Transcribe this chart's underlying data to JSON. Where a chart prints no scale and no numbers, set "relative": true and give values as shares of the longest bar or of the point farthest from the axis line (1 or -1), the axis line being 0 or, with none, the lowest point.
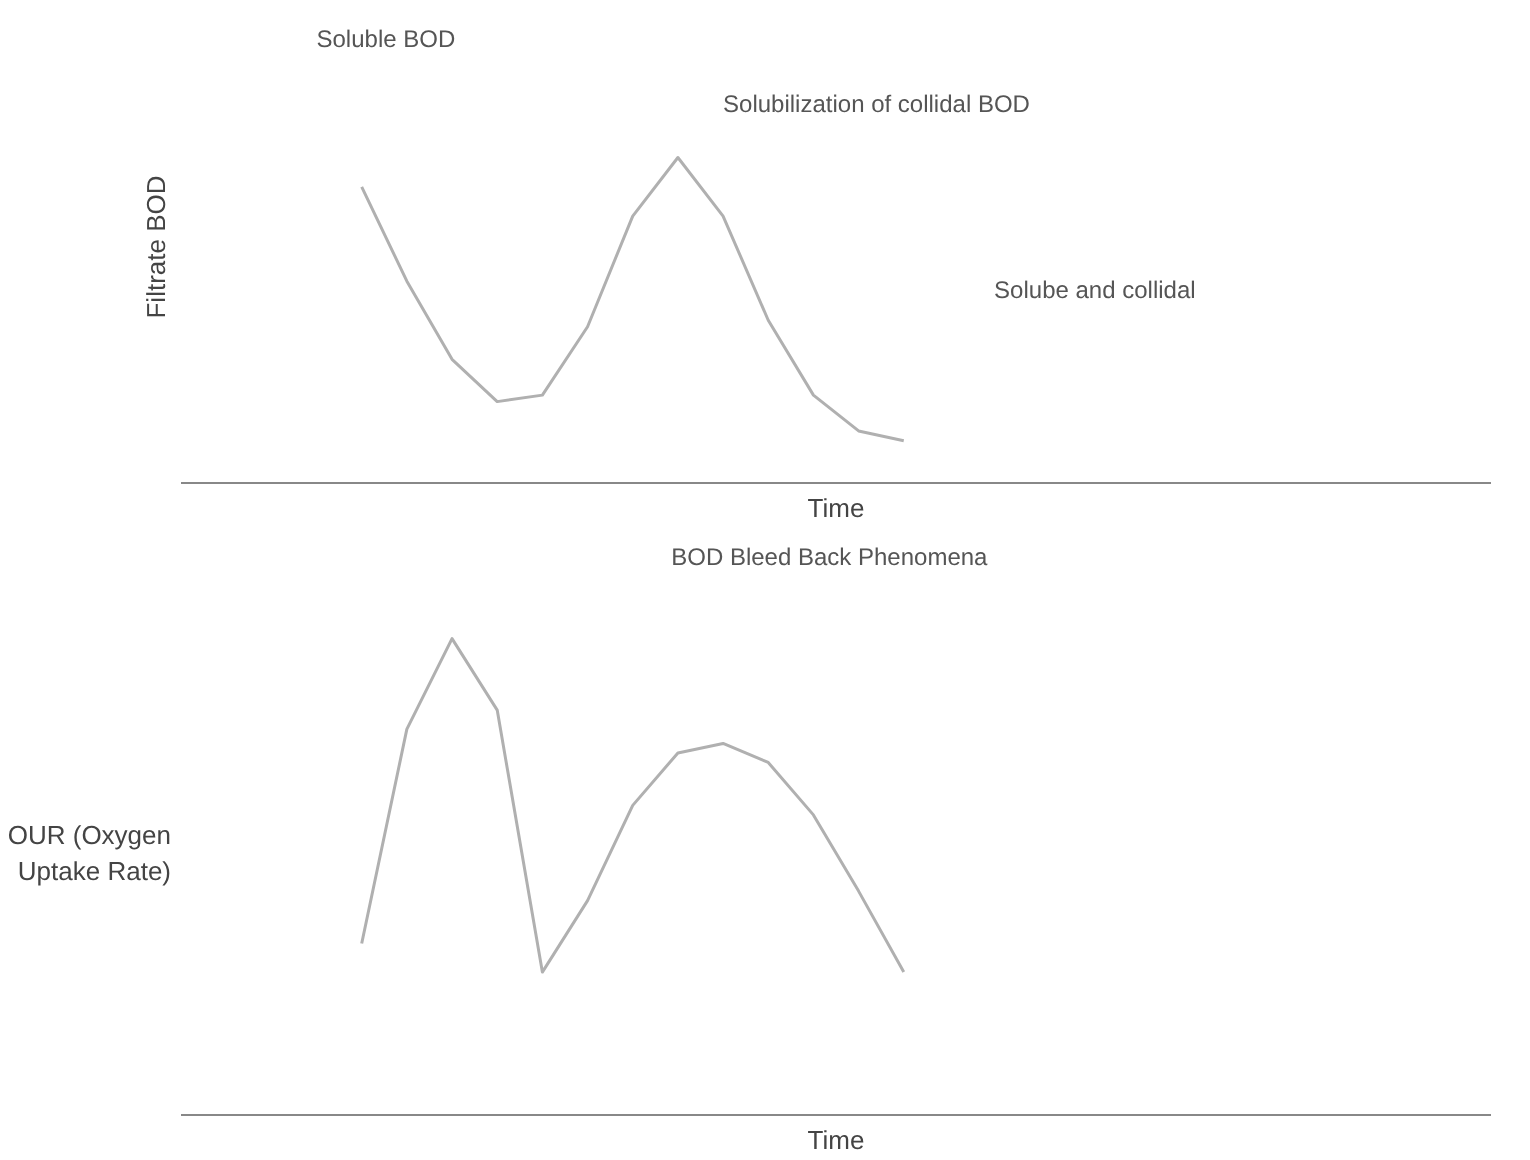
{
  "chart_data": [
    {
      "type": "line",
      "relative": true,
      "ylabel": "Filtrate BOD",
      "xlabel": "Time",
      "categories": [
        null,
        null,
        null,
        null,
        null,
        null,
        null,
        null,
        null,
        null,
        null,
        null,
        null
      ],
      "series": [
        {
          "color": "#b0b0b0",
          "values": [
            0.91,
            0.62,
            0.38,
            0.25,
            0.27,
            0.48,
            0.82,
            1.0,
            0.82,
            0.5,
            0.27,
            0.16,
            0.13
          ]
        }
      ],
      "annotations": [
        "Soluble BOD",
        "Solubilization of collidal BOD",
        "Solube and collidal",
        "BOD Bleed   Back Phenomena"
      ]
    },
    {
      "type": "line",
      "relative": true,
      "ylabel": "OUR (Oxygen Uptake Rate)",
      "xlabel": "Time",
      "categories": [
        null,
        null,
        null,
        null,
        null,
        null,
        null,
        null,
        null,
        null,
        null,
        null,
        null
      ],
      "series": [
        {
          "color": "#b0b0b0",
          "values": [
            0.36,
            0.81,
            1.0,
            0.85,
            0.3,
            0.45,
            0.65,
            0.76,
            0.78,
            0.74,
            0.63,
            0.47,
            0.3
          ]
        }
      ]
    }
  ]
}
